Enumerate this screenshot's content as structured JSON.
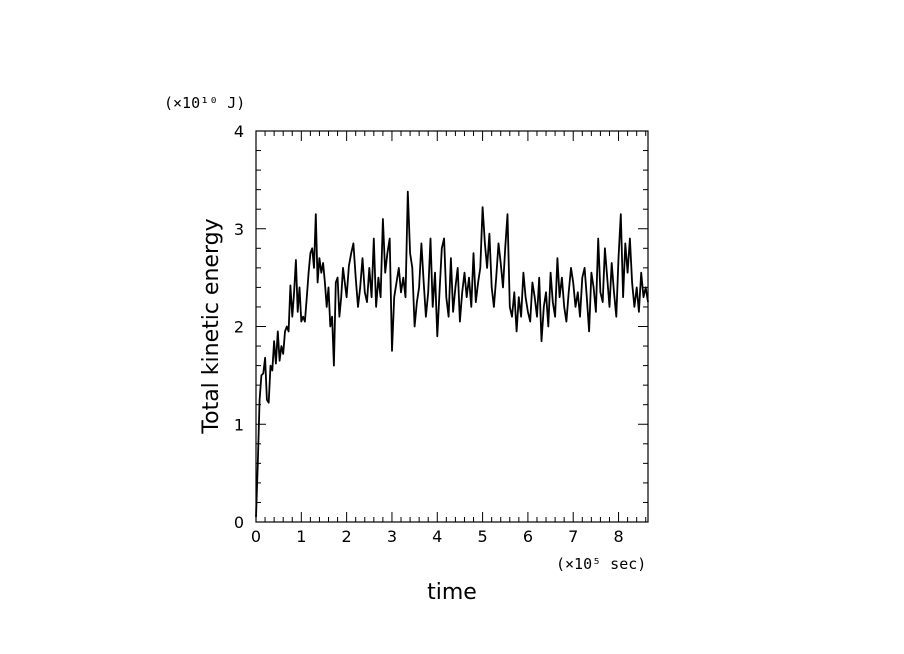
{
  "chart_data": {
    "type": "line",
    "title": "",
    "xlabel": "time",
    "ylabel": "Total kinetic energy",
    "x_unit_label": "(×10⁵ sec)",
    "y_unit_label": "(×10¹⁰ J)",
    "xlim": [
      0,
      8.65
    ],
    "ylim": [
      0,
      4
    ],
    "x_ticks": [
      0,
      1,
      2,
      3,
      4,
      5,
      6,
      7,
      8
    ],
    "y_ticks": [
      0,
      1,
      2,
      3,
      4
    ],
    "grid": false,
    "legend": "none",
    "line_color": "#000000",
    "series": [
      {
        "x": [
          0,
          0.04,
          0.08,
          0.12,
          0.16,
          0.2,
          0.24,
          0.28,
          0.32,
          0.36,
          0.4,
          0.44,
          0.48,
          0.52,
          0.56,
          0.6,
          0.64,
          0.68,
          0.72,
          0.76,
          0.8,
          0.84,
          0.88,
          0.92,
          0.96,
          1.0,
          1.04,
          1.08,
          1.12,
          1.16,
          1.2,
          1.24,
          1.28,
          1.32,
          1.36,
          1.4,
          1.44,
          1.48,
          1.52,
          1.56,
          1.6,
          1.64,
          1.68,
          1.72,
          1.76,
          1.8,
          1.84,
          1.88,
          1.92,
          1.96,
          2.0,
          2.05,
          2.1,
          2.15,
          2.2,
          2.25,
          2.3,
          2.35,
          2.4,
          2.45,
          2.5,
          2.55,
          2.6,
          2.65,
          2.7,
          2.75,
          2.8,
          2.85,
          2.9,
          2.95,
          3.0,
          3.05,
          3.1,
          3.15,
          3.2,
          3.25,
          3.3,
          3.35,
          3.4,
          3.45,
          3.5,
          3.55,
          3.6,
          3.65,
          3.7,
          3.75,
          3.8,
          3.85,
          3.9,
          3.95,
          4.0,
          4.05,
          4.1,
          4.15,
          4.2,
          4.25,
          4.3,
          4.35,
          4.4,
          4.45,
          4.5,
          4.55,
          4.6,
          4.65,
          4.7,
          4.75,
          4.8,
          4.85,
          4.9,
          4.95,
          5.0,
          5.05,
          5.1,
          5.15,
          5.2,
          5.25,
          5.3,
          5.35,
          5.4,
          5.45,
          5.5,
          5.55,
          5.6,
          5.65,
          5.7,
          5.75,
          5.8,
          5.85,
          5.9,
          5.95,
          6.0,
          6.05,
          6.1,
          6.15,
          6.2,
          6.25,
          6.3,
          6.35,
          6.4,
          6.45,
          6.5,
          6.55,
          6.6,
          6.65,
          6.7,
          6.75,
          6.8,
          6.85,
          6.9,
          6.95,
          7.0,
          7.05,
          7.1,
          7.15,
          7.2,
          7.25,
          7.3,
          7.35,
          7.4,
          7.45,
          7.5,
          7.55,
          7.6,
          7.65,
          7.7,
          7.75,
          7.8,
          7.85,
          7.9,
          7.95,
          8.0,
          8.05,
          8.1,
          8.15,
          8.2,
          8.25,
          8.3,
          8.35,
          8.4,
          8.45,
          8.5,
          8.55,
          8.6,
          8.65
        ],
        "y": [
          0.05,
          0.6,
          1.25,
          1.5,
          1.52,
          1.68,
          1.25,
          1.22,
          1.6,
          1.55,
          1.85,
          1.62,
          1.95,
          1.65,
          1.8,
          1.72,
          1.95,
          2.0,
          1.95,
          2.42,
          2.1,
          2.35,
          2.68,
          2.15,
          2.4,
          2.05,
          2.1,
          2.05,
          2.3,
          2.55,
          2.75,
          2.8,
          2.6,
          3.15,
          2.45,
          2.7,
          2.55,
          2.65,
          2.45,
          2.2,
          2.4,
          2.0,
          2.1,
          1.6,
          2.45,
          2.5,
          2.1,
          2.3,
          2.6,
          2.45,
          2.3,
          2.62,
          2.75,
          2.85,
          2.5,
          2.2,
          2.4,
          2.7,
          2.35,
          2.25,
          2.6,
          2.3,
          2.9,
          2.2,
          2.5,
          2.3,
          3.1,
          2.55,
          2.75,
          2.9,
          1.75,
          2.3,
          2.45,
          2.6,
          2.35,
          2.5,
          2.3,
          3.38,
          2.75,
          2.6,
          2.0,
          2.25,
          2.4,
          2.85,
          2.45,
          2.1,
          2.35,
          2.9,
          2.2,
          2.55,
          1.9,
          2.35,
          2.8,
          2.9,
          2.3,
          2.1,
          2.7,
          2.15,
          2.4,
          2.6,
          2.05,
          2.35,
          2.55,
          2.3,
          2.5,
          2.2,
          2.75,
          2.25,
          2.45,
          2.6,
          3.22,
          2.85,
          2.6,
          2.95,
          2.4,
          2.2,
          2.5,
          2.85,
          2.65,
          2.4,
          2.8,
          3.15,
          2.2,
          2.1,
          2.35,
          1.95,
          2.3,
          2.1,
          2.55,
          2.3,
          2.15,
          2.05,
          2.45,
          2.3,
          2.1,
          2.5,
          1.85,
          2.2,
          2.35,
          2.0,
          2.55,
          2.25,
          2.1,
          2.7,
          2.3,
          2.5,
          2.2,
          2.05,
          2.35,
          2.6,
          2.45,
          2.2,
          2.35,
          2.1,
          2.5,
          2.6,
          2.3,
          1.95,
          2.55,
          2.4,
          2.15,
          2.9,
          2.35,
          2.25,
          2.8,
          2.5,
          2.2,
          2.65,
          2.35,
          2.1,
          2.7,
          3.15,
          2.3,
          2.85,
          2.55,
          2.9,
          2.45,
          2.2,
          2.4,
          2.15,
          2.55,
          2.3,
          2.4,
          2.25
        ]
      }
    ]
  }
}
